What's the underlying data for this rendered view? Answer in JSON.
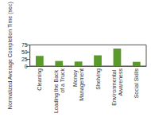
{
  "chart_data": {
    "type": "bar",
    "y_label": "Normalized Average Completion Time (sec)",
    "categories": [
      "Cleaning",
      "Loading the Back of a Truck",
      "Money Management",
      "Shelving",
      "Environmental Awareness",
      "Social Skills"
    ],
    "values": [
      36,
      18,
      16,
      38,
      62,
      15
    ],
    "color": "#5a9a2a",
    "ylim": [
      0,
      75
    ],
    "yticks": [
      0,
      25,
      50,
      75
    ],
    "grid": false
  }
}
